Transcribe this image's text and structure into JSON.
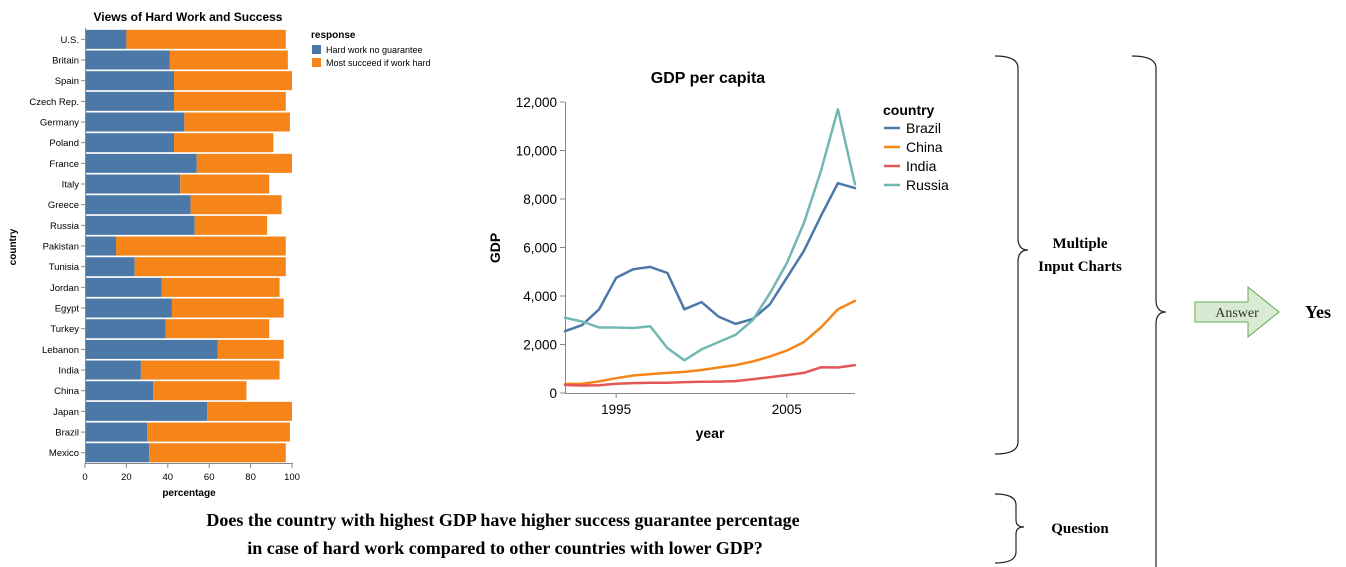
{
  "chart_data": [
    {
      "type": "bar",
      "title": "Views of Hard Work and Success",
      "xlabel": "percentage",
      "ylabel": "country",
      "xlim": [
        0,
        100
      ],
      "xticks": [
        "0",
        "20",
        "40",
        "60",
        "80",
        "100"
      ],
      "categories": [
        "U.S.",
        "Britain",
        "Spain",
        "Czech Rep.",
        "Germany",
        "Poland",
        "France",
        "Italy",
        "Greece",
        "Russia",
        "Pakistan",
        "Tunisia",
        "Jordan",
        "Egypt",
        "Turkey",
        "Lebanon",
        "India",
        "China",
        "Japan",
        "Brazil",
        "Mexico"
      ],
      "series": [
        {
          "name": "Hard work no guarantee",
          "color": "#4c78a8",
          "values": [
            20,
            41,
            43,
            43,
            48,
            43,
            54,
            46,
            51,
            53,
            15,
            24,
            37,
            42,
            39,
            64,
            27,
            33,
            59,
            30,
            31
          ]
        },
        {
          "name": "Most succeed if work hard",
          "color": "#f58518",
          "values": [
            77,
            57,
            57,
            54,
            51,
            48,
            46,
            43,
            44,
            35,
            82,
            73,
            57,
            54,
            50,
            32,
            67,
            45,
            41,
            69,
            66
          ]
        }
      ],
      "stacked": true,
      "legend": {
        "title": "response",
        "placement": "right"
      }
    },
    {
      "type": "line",
      "title": "GDP per capita",
      "xlabel": "year",
      "ylabel": "GDP",
      "xlim": [
        1992,
        2009
      ],
      "ylim": [
        0,
        12000
      ],
      "xticks": [
        "1995",
        "2005"
      ],
      "yticks": [
        "0",
        "2,000",
        "4,000",
        "6,000",
        "8,000",
        "10,000",
        "12,000"
      ],
      "x": [
        1992,
        1993,
        1994,
        1995,
        1996,
        1997,
        1998,
        1999,
        2000,
        2001,
        2002,
        2003,
        2004,
        2005,
        2006,
        2007,
        2008,
        2009
      ],
      "series": [
        {
          "name": "Brazil",
          "color": "#4c78a8",
          "values": [
            2550,
            2800,
            3450,
            4750,
            5100,
            5200,
            4950,
            3450,
            3750,
            3150,
            2850,
            3050,
            3650,
            4750,
            5850,
            7300,
            8650,
            8450
          ]
        },
        {
          "name": "China",
          "color": "#f58518",
          "values": [
            370,
            380,
            480,
            610,
            720,
            780,
            830,
            870,
            950,
            1050,
            1150,
            1300,
            1500,
            1750,
            2100,
            2700,
            3450,
            3800
          ]
        },
        {
          "name": "India",
          "color": "#e45756",
          "values": [
            330,
            310,
            320,
            380,
            410,
            420,
            420,
            450,
            460,
            470,
            490,
            570,
            650,
            740,
            830,
            1060,
            1050,
            1150
          ]
        },
        {
          "name": "Russia",
          "color": "#72b7b2",
          "values": [
            3100,
            2950,
            2700,
            2700,
            2680,
            2750,
            1850,
            1350,
            1800,
            2100,
            2400,
            3000,
            4100,
            5350,
            7000,
            9150,
            11700,
            8600
          ]
        }
      ],
      "legend": {
        "title": "country",
        "placement": "top-right"
      },
      "grid": false
    }
  ],
  "annotations": {
    "multiple_input_charts": [
      "Multiple",
      "Input Charts"
    ],
    "question_label": "Question",
    "answer_label": "Answer",
    "answer_value": "Yes",
    "question_text": [
      "Does the country with highest GDP have higher success guarantee percentage",
      "in case of hard work compared to other countries with lower GDP?"
    ]
  }
}
